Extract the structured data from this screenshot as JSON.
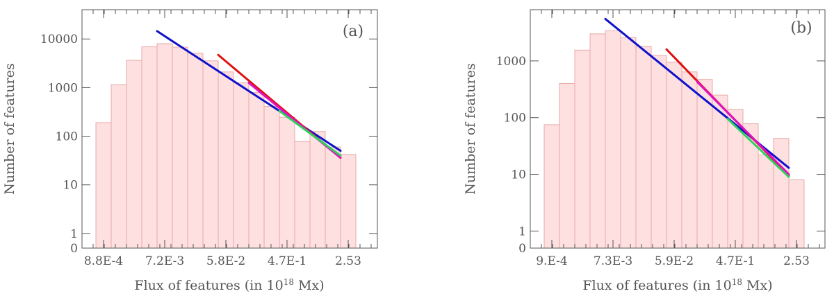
{
  "chart_data": [
    {
      "type": "bar",
      "panel_label": "(a)",
      "title": "",
      "xlabel_main": "Flux of features (in 10",
      "xlabel_sup": "18",
      "xlabel_tail": " Mx)",
      "ylabel": "Number of features",
      "yscale": "log",
      "ylim": [
        0.5,
        40000
      ],
      "xscale": "log",
      "x_tick_labels": [
        "8.8E-4",
        "7.2E-3",
        "5.8E-2",
        "4.7E-1",
        "2.53"
      ],
      "y_tick_labels": [
        {
          "label": "0",
          "value": 0.5
        },
        {
          "label": "1",
          "value": 1
        },
        {
          "label": "10",
          "value": 10
        },
        {
          "label": "100",
          "value": 100
        },
        {
          "label": "1000",
          "value": 1000
        },
        {
          "label": "10000",
          "value": 10000
        }
      ],
      "values": [
        190,
        1150,
        3650,
        6900,
        8000,
        6800,
        5100,
        3550,
        2100,
        1250,
        790,
        410,
        245,
        78,
        125,
        60,
        42
      ],
      "bar_color": "#fde0df",
      "bar_edge_color": "#e8a9a8",
      "fits": [
        {
          "name": "blue",
          "color": "#1010cc",
          "from_bin": 4.0,
          "to_bin": 16.0,
          "y_start": 14500,
          "y_end": 50
        },
        {
          "name": "red",
          "color": "#e01010",
          "from_bin": 8.0,
          "to_bin": 16.0,
          "y_start": 4700,
          "y_end": 36
        },
        {
          "name": "magenta",
          "color": "#e010c0",
          "from_bin": 10.0,
          "to_bin": 16.0,
          "y_start": 1250,
          "y_end": 36
        },
        {
          "name": "green",
          "color": "#30d060",
          "from_bin": 12.0,
          "to_bin": 16.0,
          "y_start": 330,
          "y_end": 40
        }
      ]
    },
    {
      "type": "bar",
      "panel_label": "(b)",
      "title": "",
      "xlabel_main": "Flux of features (in 10",
      "xlabel_sup": "18",
      "xlabel_tail": " Mx)",
      "ylabel": "Number of features",
      "yscale": "log",
      "ylim": [
        0.5,
        8000
      ],
      "xscale": "log",
      "x_tick_labels": [
        "9.E-4",
        "7.3E-3",
        "5.9E-2",
        "4.7E-1",
        "2.53"
      ],
      "y_tick_labels": [
        {
          "label": "0",
          "value": 0.5
        },
        {
          "label": "1",
          "value": 1
        },
        {
          "label": "10",
          "value": 10
        },
        {
          "label": "100",
          "value": 100
        },
        {
          "label": "1000",
          "value": 1000
        }
      ],
      "values": [
        75,
        400,
        1550,
        3000,
        3400,
        2600,
        1800,
        1250,
        950,
        640,
        470,
        250,
        140,
        78,
        22,
        43,
        8
      ],
      "bar_color": "#fde0df",
      "bar_edge_color": "#e8a9a8",
      "fits": [
        {
          "name": "blue",
          "color": "#1010cc",
          "from_bin": 4.0,
          "to_bin": 16.0,
          "y_start": 5500,
          "y_end": 13
        },
        {
          "name": "red",
          "color": "#e01010",
          "from_bin": 8.0,
          "to_bin": 16.0,
          "y_start": 1600,
          "y_end": 9.5
        },
        {
          "name": "magenta",
          "color": "#e010c0",
          "from_bin": 10.0,
          "to_bin": 16.0,
          "y_start": 430,
          "y_end": 10
        },
        {
          "name": "green",
          "color": "#30d060",
          "from_bin": 12.0,
          "to_bin": 16.0,
          "y_start": 95,
          "y_end": 9
        }
      ]
    }
  ]
}
